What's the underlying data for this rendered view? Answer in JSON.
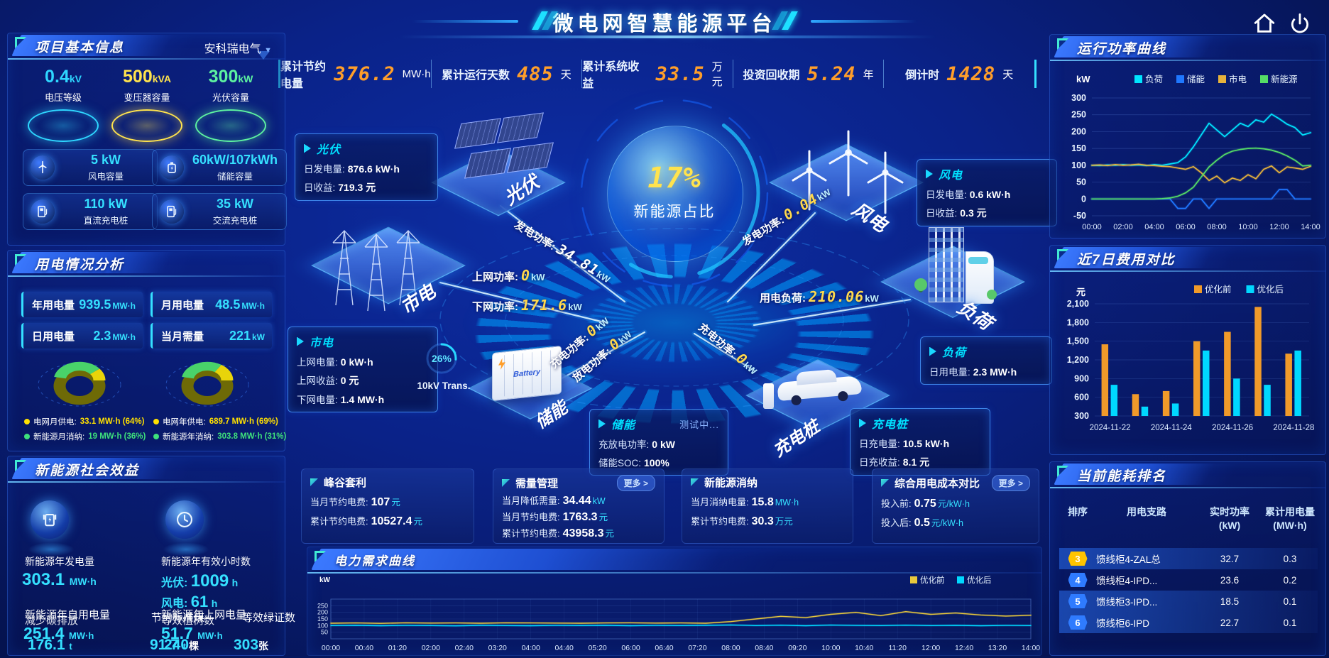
{
  "app": {
    "title": "微电网智慧能源平台"
  },
  "icons": [
    "home-icon",
    "power-icon",
    "panel-corner-icon",
    "chevron-down-icon",
    "wind-turbine-icon",
    "battery-icon",
    "dc-charger-icon",
    "ac-charger-icon",
    "generation-icon",
    "clock-icon",
    "arrow-right-icon"
  ],
  "top_stats": [
    {
      "label": "累计节约电量",
      "value": "376.2",
      "unit": "MW·h"
    },
    {
      "label": "累计运行天数",
      "value": "485",
      "unit": "天"
    },
    {
      "label": "累计系统收益",
      "value": "33.5",
      "unit": "万元"
    },
    {
      "label": "投资回收期",
      "value": "5.24",
      "unit": "年"
    },
    {
      "label": "倒计时",
      "value": "1428",
      "unit": "天"
    }
  ],
  "project": {
    "title": "项目基本信息",
    "company": "安科瑞电气",
    "pedestals": [
      {
        "value": "0.4",
        "unit": "kV",
        "label": "电压等级",
        "color": "#2ed6ff"
      },
      {
        "value": "500",
        "unit": "kVA",
        "label": "变压器容量",
        "color": "#ffe34d"
      },
      {
        "value": "300",
        "unit": "kW",
        "label": "光伏容量",
        "color": "#5df2a0"
      }
    ],
    "cards": [
      {
        "icon": "wind-turbine-icon",
        "value": "5 kW",
        "label": "风电容量"
      },
      {
        "icon": "battery-icon",
        "value": "60kW/107kWh",
        "label": "储能容量"
      },
      {
        "icon": "dc-charger-icon",
        "value": "110 kW",
        "label": "直流充电桩"
      },
      {
        "icon": "ac-charger-icon",
        "value": "35 kW",
        "label": "交流充电桩"
      }
    ]
  },
  "usage": {
    "title": "用电情况分析",
    "stats": [
      {
        "label": "年用电量",
        "value": "939.5",
        "unit": "MW·h"
      },
      {
        "label": "月用电量",
        "value": "48.5",
        "unit": "MW·h"
      },
      {
        "label": "日用电量",
        "value": "2.3",
        "unit": "MW·h"
      },
      {
        "label": "当月需量",
        "value": "221",
        "unit": "kW"
      }
    ],
    "donut_month": {
      "type": "pie",
      "values": [
        64,
        36
      ],
      "colors": [
        "#e8d40a",
        "#49d36a"
      ]
    },
    "donut_year": {
      "type": "pie",
      "values": [
        69,
        31
      ],
      "colors": [
        "#e8d40a",
        "#49d36a"
      ]
    },
    "legend": [
      {
        "dot": "#ffe000",
        "label": "电网月供电:",
        "value": "33.1 MW·h (64%)",
        "color": "#ffe000"
      },
      {
        "dot": "#3ee07c",
        "label": "新能源月消纳:",
        "value": "19 MW·h (36%)",
        "color": "#3ee07c"
      },
      {
        "dot": "#ffe000",
        "label": "电网年供电:",
        "value": "689.7 MW·h (69%)",
        "color": "#ffe000"
      },
      {
        "dot": "#3ee07c",
        "label": "新能源年消纳:",
        "value": "303.8 MW·h (31%)",
        "color": "#3ee07c"
      }
    ]
  },
  "benefit": {
    "title": "新能源社会效益",
    "gen": {
      "label": "新能源年发电量",
      "value": "303.1",
      "unit": "MW·h"
    },
    "hours": {
      "label": "新能源年有效小时数",
      "pv_label": "光伏:",
      "pv_value": "1009",
      "pv_unit": "h",
      "wind_label": "风电:",
      "wind_value": "61",
      "wind_unit": "h"
    },
    "glitch": {
      "self_label": "新能源年自用电量",
      "self_value": "251.4",
      "self_unit": "MW·h",
      "carbon_label": "减少碳排放",
      "carbon_value": "176.1",
      "carbon_unit": "t",
      "coal_label": "节约标准煤",
      "coal_value": "91.7",
      "coal_unit": "t",
      "grid_label": "新能源年上网电量",
      "grid_value": "51.7",
      "grid_unit": "MW·h",
      "tree_label": "等效植树数",
      "tree_value": "240",
      "tree_unit": "棵",
      "cert_label": "等效绿证数",
      "cert_value": "303",
      "cert_unit": "张"
    }
  },
  "scene": {
    "center": {
      "value": "17%",
      "label": "新能源占比"
    },
    "nodes": {
      "pv": "光伏",
      "grid": "市电",
      "wind": "风电",
      "storage": "储能",
      "charger": "充电桩",
      "load": "负荷"
    },
    "storage_icon_text": "Battery",
    "gauge": {
      "value": "26%",
      "pct": 26,
      "label": "10kV Trans."
    },
    "flows": [
      {
        "label": "发电功率:",
        "value": "34.81",
        "unit": "kW",
        "color": "#ffffff"
      },
      {
        "label": "上网功率:",
        "value": "0",
        "unit": "kW",
        "color": "#ffd84d"
      },
      {
        "label": "下网功率:",
        "value": "171.6",
        "unit": "kW",
        "color": "#ffd84d"
      },
      {
        "label": "发电功率:",
        "value": "0.04",
        "unit": "kW",
        "color": "#ffd84d"
      },
      {
        "label": "用电负荷:",
        "value": "210.06",
        "unit": "kW",
        "color": "#ffd84d"
      },
      {
        "label": "充电功率:",
        "value": "0",
        "unit": "kW",
        "color": "#ffd84d"
      },
      {
        "label": "放电功率:",
        "value": "0",
        "unit": "kW",
        "color": "#ffd84d"
      },
      {
        "label": "充电功率:",
        "value": "0",
        "unit": "kW",
        "color": "#ffd84d"
      }
    ],
    "boxes": {
      "pv": {
        "title": "光伏",
        "lines": [
          {
            "l": "日发电量:",
            "v": "876.6 kW·h"
          },
          {
            "l": "日收益:",
            "v": "719.3 元"
          }
        ]
      },
      "grid": {
        "title": "市电",
        "lines": [
          {
            "l": "上网电量:",
            "v": "0 kW·h"
          },
          {
            "l": "上网收益:",
            "v": "0 元"
          },
          {
            "l": "下网电量:",
            "v": "1.4 MW·h"
          }
        ]
      },
      "wind": {
        "title": "风电",
        "lines": [
          {
            "l": "日发电量:",
            "v": "0.6 kW·h"
          },
          {
            "l": "日收益:",
            "v": "0.3 元"
          }
        ]
      },
      "storage": {
        "title": "储能",
        "badge": "测试中...",
        "lines": [
          {
            "l": "充放电功率:",
            "v": "0 kW"
          },
          {
            "l": "储能SOC:",
            "v": "100%"
          }
        ]
      },
      "charger": {
        "title": "充电桩",
        "lines": [
          {
            "l": "日充电量:",
            "v": "10.5 kW·h"
          },
          {
            "l": "日充收益:",
            "v": "8.1 元"
          }
        ]
      },
      "load": {
        "title": "负荷",
        "lines": [
          {
            "l": "日用电量:",
            "v": "2.3 MW·h"
          }
        ]
      }
    }
  },
  "saving_cards": [
    {
      "title": "峰谷套利",
      "more": null,
      "lines": [
        {
          "l": "当月节约电费:",
          "v": "107",
          "u": "元"
        },
        {
          "l": "累计节约电费:",
          "v": "10527.4",
          "u": "元"
        }
      ]
    },
    {
      "title": "需量管理",
      "more": "更多 >",
      "lines": [
        {
          "l": "当月降低需量:",
          "v": "34.44",
          "u": "kW"
        },
        {
          "l": "当月节约电费:",
          "v": "1763.3",
          "u": "元"
        },
        {
          "l": "累计节约电费:",
          "v": "43958.3",
          "u": "元"
        }
      ]
    },
    {
      "title": "新能源消纳",
      "more": null,
      "lines": [
        {
          "l": "当月消纳电量:",
          "v": "15.8",
          "u": "MW·h"
        },
        {
          "l": "累计节约电费:",
          "v": "30.3",
          "u": "万元"
        }
      ]
    },
    {
      "title": "综合用电成本对比",
      "more": "更多 >",
      "lines": [
        {
          "l": "投入前:",
          "v": "0.75",
          "u": "元/kW·h"
        },
        {
          "l": "投入后:",
          "v": "0.5",
          "u": "元/kW·h"
        }
      ]
    }
  ],
  "charts": {
    "power": {
      "title": "运行功率曲线",
      "unit": "kW",
      "chart": {
        "type": "line",
        "ylim": [
          -50,
          300
        ],
        "yticks": [
          300,
          250,
          200,
          150,
          100,
          50,
          0,
          -50
        ],
        "xticks": [
          "00:00",
          "02:00",
          "04:00",
          "06:00",
          "08:00",
          "10:00",
          "12:00",
          "14:00"
        ],
        "series": [
          {
            "name": "负荷",
            "color": "#00e5ff",
            "values": [
              100,
              99,
              101,
              100,
              102,
              100,
              101,
              99,
              102,
              100,
              104,
              108,
              125,
              155,
              190,
              225,
              205,
              185,
              205,
              225,
              215,
              235,
              228,
              252,
              238,
              222,
              212,
              190,
              197
            ]
          },
          {
            "name": "储能",
            "color": "#1f77ff",
            "values": [
              0,
              0,
              0,
              0,
              0,
              0,
              0,
              0,
              0,
              0,
              0,
              -28,
              -28,
              0,
              0,
              -28,
              0,
              0,
              0,
              0,
              0,
              0,
              0,
              0,
              28,
              28,
              0,
              0,
              0
            ]
          },
          {
            "name": "市电",
            "color": "#e6b23c",
            "values": [
              100,
              101,
              99,
              102,
              100,
              101,
              103,
              100,
              99,
              97,
              96,
              92,
              88,
              96,
              78,
              55,
              68,
              48,
              62,
              55,
              72,
              60,
              88,
              98,
              78,
              95,
              92,
              88,
              97
            ]
          },
          {
            "name": "新能源",
            "color": "#55dd66",
            "values": [
              0,
              0,
              0,
              0,
              0,
              0,
              0,
              0,
              0,
              1,
              3,
              8,
              18,
              35,
              65,
              95,
              115,
              132,
              142,
              147,
              150,
              151,
              149,
              145,
              138,
              128,
              115,
              98,
              100
            ]
          }
        ]
      }
    },
    "cost": {
      "title": "近7日费用对比",
      "unit": "元",
      "chart": {
        "type": "bar",
        "ylim": [
          300,
          2100
        ],
        "yticks": [
          "2,100",
          "1,800",
          "1,500",
          "1,200",
          "900",
          "600",
          "300"
        ],
        "categories": [
          "2024-11-22",
          "2024-11-23",
          "2024-11-24",
          "2024-11-25",
          "2024-11-26",
          "2024-11-27",
          "2024-11-28"
        ],
        "xticks": [
          "2024-11-22",
          "2024-11-24",
          "2024-11-26",
          "2024-11-28"
        ],
        "series": [
          {
            "name": "优化前",
            "color": "#f09a2a",
            "values": [
              1450,
              650,
              700,
              1500,
              1650,
              2050,
              1300
            ]
          },
          {
            "name": "优化后",
            "color": "#00d8ff",
            "values": [
              800,
              450,
              500,
              1350,
              900,
              800,
              1350
            ]
          }
        ]
      }
    },
    "demand": {
      "title": "电力需求曲线",
      "unit": "kW",
      "chart": {
        "type": "line",
        "ylim": [
          0,
          300
        ],
        "yticks": [
          250,
          200,
          150,
          100,
          50
        ],
        "xticks": [
          "00:00",
          "00:40",
          "01:20",
          "02:00",
          "02:40",
          "03:20",
          "04:00",
          "04:40",
          "05:20",
          "06:00",
          "06:40",
          "07:20",
          "08:00",
          "08:40",
          "09:20",
          "10:00",
          "10:40",
          "11:20",
          "12:00",
          "12:40",
          "13:20",
          "14:00"
        ],
        "series": [
          {
            "name": "优化前",
            "color": "#e8c83c",
            "values": [
              118,
              120,
              117,
              121,
              119,
              120,
              118,
              121,
              120,
              119,
              118,
              120,
              121,
              119,
              120,
              118,
              130,
              150,
              170,
              160,
              185,
              200,
              175,
              205,
              185,
              195,
              180,
              172,
              178
            ]
          },
          {
            "name": "优化后",
            "color": "#00d8ff",
            "values": [
              100,
              102,
              99,
              101,
              100,
              98,
              102,
              100,
              99,
              101,
              100,
              102,
              99,
              101,
              100,
              102,
              105,
              100,
              103,
              99,
              104,
              101,
              100,
              103,
              100,
              102,
              99,
              101,
              100
            ]
          }
        ]
      }
    }
  },
  "ranking": {
    "title": "当前能耗排名",
    "headers": [
      {
        "l1": "排序",
        "l2": ""
      },
      {
        "l1": "用电支路",
        "l2": ""
      },
      {
        "l1": "实时功率",
        "l2": "(kW)"
      },
      {
        "l1": "累计用电量",
        "l2": "(MW·h)"
      }
    ],
    "rows": [
      {
        "rank": "3",
        "badge": "#ffc400",
        "branch": "馈线柜4-ZAL总",
        "power": "32.7",
        "energy": "0.3",
        "hl": true
      },
      {
        "rank": "4",
        "badge": "#2f7bff",
        "branch": "馈线柜4-IPD...",
        "power": "23.6",
        "energy": "0.2",
        "hl": false
      },
      {
        "rank": "5",
        "badge": "#2f7bff",
        "branch": "馈线柜3-IPD...",
        "power": "18.5",
        "energy": "0.1",
        "hl": true
      },
      {
        "rank": "6",
        "badge": "#2f7bff",
        "branch": "馈线柜6-IPD",
        "power": "22.7",
        "energy": "0.1",
        "hl": true
      }
    ]
  }
}
